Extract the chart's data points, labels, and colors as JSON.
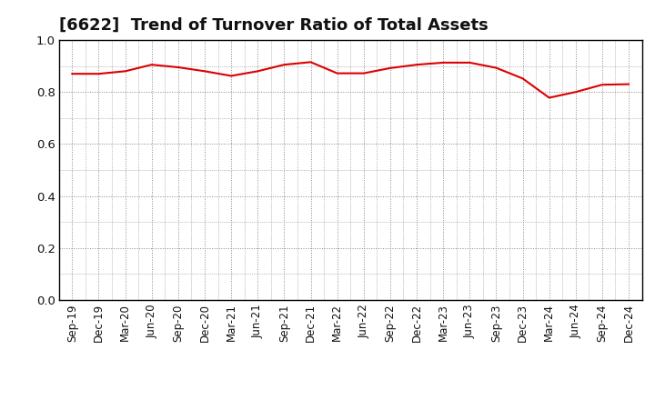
{
  "title": "[6622]  Trend of Turnover Ratio of Total Assets",
  "x_labels": [
    "Sep-19",
    "Dec-19",
    "Mar-20",
    "Jun-20",
    "Sep-20",
    "Dec-20",
    "Mar-21",
    "Jun-21",
    "Sep-21",
    "Dec-21",
    "Mar-22",
    "Jun-22",
    "Sep-22",
    "Dec-22",
    "Mar-23",
    "Jun-23",
    "Sep-23",
    "Dec-23",
    "Mar-24",
    "Jun-24",
    "Sep-24",
    "Dec-24"
  ],
  "y_values": [
    0.87,
    0.87,
    0.88,
    0.905,
    0.895,
    0.88,
    0.862,
    0.88,
    0.905,
    0.915,
    0.872,
    0.872,
    0.892,
    0.905,
    0.913,
    0.913,
    0.893,
    0.852,
    0.778,
    0.8,
    0.828,
    0.83
  ],
  "line_color": "#dd0000",
  "line_width": 1.5,
  "ylim": [
    0.0,
    1.0
  ],
  "yticks": [
    0.0,
    0.2,
    0.4,
    0.6,
    0.8,
    1.0
  ],
  "background_color": "#ffffff",
  "grid_color": "#888888",
  "title_fontsize": 13,
  "tick_fontsize": 8.5,
  "title_color": "#111111"
}
